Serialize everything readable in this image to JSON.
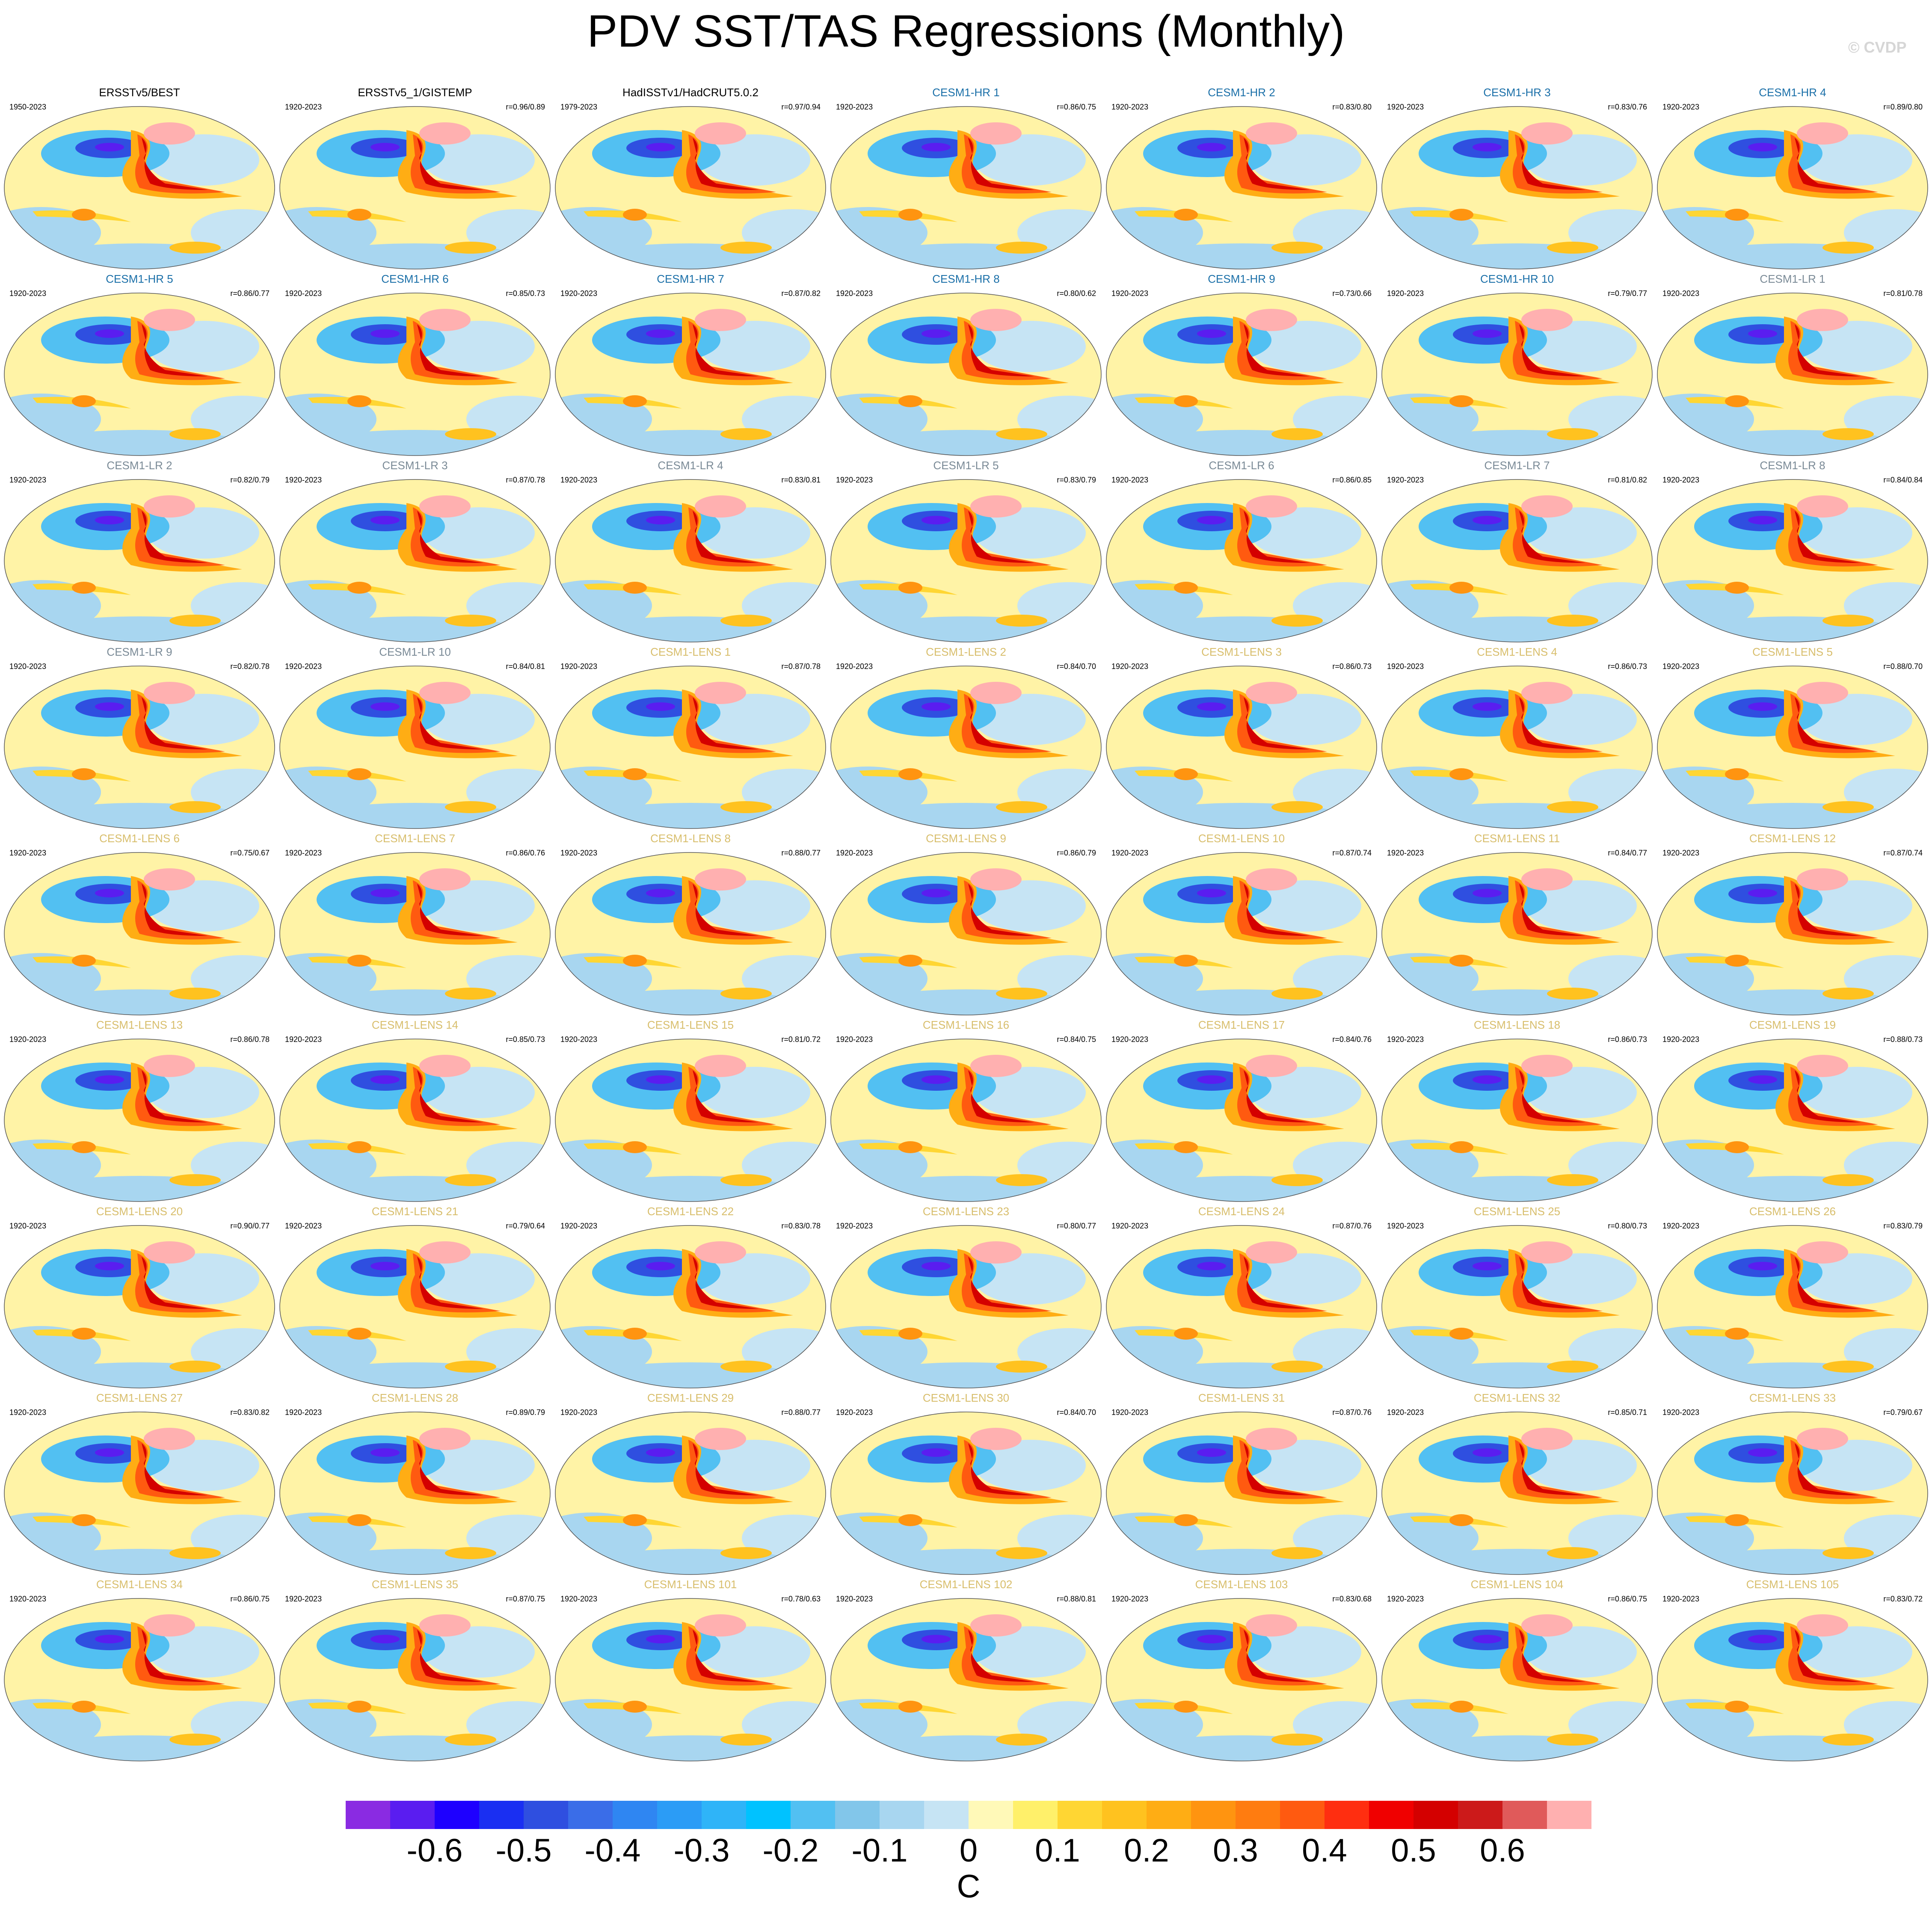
{
  "title": "PDV SST/TAS Regressions (Monthly)",
  "copyright": "© CVDP",
  "chart_data": {
    "type": "heatmap",
    "title": "PDV SST/TAS Regressions (Monthly)",
    "units": "C",
    "colorbar": {
      "ticks": [
        "-0.6",
        "-0.5",
        "-0.4",
        "-0.3",
        "-0.2",
        "-0.1",
        "0",
        "0.1",
        "0.2",
        "0.3",
        "0.4",
        "0.5",
        "0.6"
      ],
      "colors": [
        "#8a2be2",
        "#5a1df0",
        "#1e00ff",
        "#1a2ff2",
        "#2f4fe0",
        "#3a6de8",
        "#2f86f2",
        "#2b9cf6",
        "#2fb4f8",
        "#00c2ff",
        "#52c0f2",
        "#82c6ea",
        "#a8d6f0",
        "#c6e4f4",
        "#fff9b8",
        "#fff06a",
        "#ffd633",
        "#ffc21f",
        "#ffad14",
        "#ff9410",
        "#ff7c10",
        "#ff5a10",
        "#ff2e10",
        "#f00000",
        "#d40000",
        "#cc1a1a",
        "#e05a5a",
        "#ffb0b0"
      ]
    },
    "panels": [
      {
        "title": "ERSSTv5/BEST",
        "years": "1950-2023",
        "corr": "",
        "group": "obs"
      },
      {
        "title": "ERSSTv5_1/GISTEMP",
        "years": "1920-2023",
        "corr": "r=0.96/0.89",
        "group": "obs"
      },
      {
        "title": "HadISSTv1/HadCRUT5.0.2",
        "years": "1979-2023",
        "corr": "r=0.97/0.94",
        "group": "obs"
      },
      {
        "title": "CESM1-HR 1",
        "years": "1920-2023",
        "corr": "r=0.86/0.75",
        "group": "hr"
      },
      {
        "title": "CESM1-HR 2",
        "years": "1920-2023",
        "corr": "r=0.83/0.80",
        "group": "hr"
      },
      {
        "title": "CESM1-HR 3",
        "years": "1920-2023",
        "corr": "r=0.83/0.76",
        "group": "hr"
      },
      {
        "title": "CESM1-HR 4",
        "years": "1920-2023",
        "corr": "r=0.89/0.80",
        "group": "hr"
      },
      {
        "title": "CESM1-HR 5",
        "years": "1920-2023",
        "corr": "r=0.86/0.77",
        "group": "hr"
      },
      {
        "title": "CESM1-HR 6",
        "years": "1920-2023",
        "corr": "r=0.85/0.73",
        "group": "hr"
      },
      {
        "title": "CESM1-HR 7",
        "years": "1920-2023",
        "corr": "r=0.87/0.82",
        "group": "hr"
      },
      {
        "title": "CESM1-HR 8",
        "years": "1920-2023",
        "corr": "r=0.80/0.62",
        "group": "hr"
      },
      {
        "title": "CESM1-HR 9",
        "years": "1920-2023",
        "corr": "r=0.73/0.66",
        "group": "hr"
      },
      {
        "title": "CESM1-HR 10",
        "years": "1920-2023",
        "corr": "r=0.79/0.77",
        "group": "hr"
      },
      {
        "title": "CESM1-LR 1",
        "years": "1920-2023",
        "corr": "r=0.81/0.78",
        "group": "lr"
      },
      {
        "title": "CESM1-LR 2",
        "years": "1920-2023",
        "corr": "r=0.82/0.79",
        "group": "lr"
      },
      {
        "title": "CESM1-LR 3",
        "years": "1920-2023",
        "corr": "r=0.87/0.78",
        "group": "lr"
      },
      {
        "title": "CESM1-LR 4",
        "years": "1920-2023",
        "corr": "r=0.83/0.81",
        "group": "lr"
      },
      {
        "title": "CESM1-LR 5",
        "years": "1920-2023",
        "corr": "r=0.83/0.79",
        "group": "lr"
      },
      {
        "title": "CESM1-LR 6",
        "years": "1920-2023",
        "corr": "r=0.86/0.85",
        "group": "lr"
      },
      {
        "title": "CESM1-LR 7",
        "years": "1920-2023",
        "corr": "r=0.81/0.82",
        "group": "lr"
      },
      {
        "title": "CESM1-LR 8",
        "years": "1920-2023",
        "corr": "r=0.84/0.84",
        "group": "lr"
      },
      {
        "title": "CESM1-LR 9",
        "years": "1920-2023",
        "corr": "r=0.82/0.78",
        "group": "lr"
      },
      {
        "title": "CESM1-LR 10",
        "years": "1920-2023",
        "corr": "r=0.84/0.81",
        "group": "lr"
      },
      {
        "title": "CESM1-LENS 1",
        "years": "1920-2023",
        "corr": "r=0.87/0.78",
        "group": "lens"
      },
      {
        "title": "CESM1-LENS 2",
        "years": "1920-2023",
        "corr": "r=0.84/0.70",
        "group": "lens"
      },
      {
        "title": "CESM1-LENS 3",
        "years": "1920-2023",
        "corr": "r=0.86/0.73",
        "group": "lens"
      },
      {
        "title": "CESM1-LENS 4",
        "years": "1920-2023",
        "corr": "r=0.86/0.73",
        "group": "lens"
      },
      {
        "title": "CESM1-LENS 5",
        "years": "1920-2023",
        "corr": "r=0.88/0.70",
        "group": "lens"
      },
      {
        "title": "CESM1-LENS 6",
        "years": "1920-2023",
        "corr": "r=0.75/0.67",
        "group": "lens"
      },
      {
        "title": "CESM1-LENS 7",
        "years": "1920-2023",
        "corr": "r=0.86/0.76",
        "group": "lens"
      },
      {
        "title": "CESM1-LENS 8",
        "years": "1920-2023",
        "corr": "r=0.88/0.77",
        "group": "lens"
      },
      {
        "title": "CESM1-LENS 9",
        "years": "1920-2023",
        "corr": "r=0.86/0.79",
        "group": "lens"
      },
      {
        "title": "CESM1-LENS 10",
        "years": "1920-2023",
        "corr": "r=0.87/0.74",
        "group": "lens"
      },
      {
        "title": "CESM1-LENS 11",
        "years": "1920-2023",
        "corr": "r=0.84/0.77",
        "group": "lens"
      },
      {
        "title": "CESM1-LENS 12",
        "years": "1920-2023",
        "corr": "r=0.87/0.74",
        "group": "lens"
      },
      {
        "title": "CESM1-LENS 13",
        "years": "1920-2023",
        "corr": "r=0.86/0.78",
        "group": "lens"
      },
      {
        "title": "CESM1-LENS 14",
        "years": "1920-2023",
        "corr": "r=0.85/0.73",
        "group": "lens"
      },
      {
        "title": "CESM1-LENS 15",
        "years": "1920-2023",
        "corr": "r=0.81/0.72",
        "group": "lens"
      },
      {
        "title": "CESM1-LENS 16",
        "years": "1920-2023",
        "corr": "r=0.84/0.75",
        "group": "lens"
      },
      {
        "title": "CESM1-LENS 17",
        "years": "1920-2023",
        "corr": "r=0.84/0.76",
        "group": "lens"
      },
      {
        "title": "CESM1-LENS 18",
        "years": "1920-2023",
        "corr": "r=0.86/0.73",
        "group": "lens"
      },
      {
        "title": "CESM1-LENS 19",
        "years": "1920-2023",
        "corr": "r=0.88/0.73",
        "group": "lens"
      },
      {
        "title": "CESM1-LENS 20",
        "years": "1920-2023",
        "corr": "r=0.90/0.77",
        "group": "lens"
      },
      {
        "title": "CESM1-LENS 21",
        "years": "1920-2023",
        "corr": "r=0.79/0.64",
        "group": "lens"
      },
      {
        "title": "CESM1-LENS 22",
        "years": "1920-2023",
        "corr": "r=0.83/0.78",
        "group": "lens"
      },
      {
        "title": "CESM1-LENS 23",
        "years": "1920-2023",
        "corr": "r=0.80/0.77",
        "group": "lens"
      },
      {
        "title": "CESM1-LENS 24",
        "years": "1920-2023",
        "corr": "r=0.87/0.76",
        "group": "lens"
      },
      {
        "title": "CESM1-LENS 25",
        "years": "1920-2023",
        "corr": "r=0.80/0.73",
        "group": "lens"
      },
      {
        "title": "CESM1-LENS 26",
        "years": "1920-2023",
        "corr": "r=0.83/0.79",
        "group": "lens"
      },
      {
        "title": "CESM1-LENS 27",
        "years": "1920-2023",
        "corr": "r=0.83/0.82",
        "group": "lens"
      },
      {
        "title": "CESM1-LENS 28",
        "years": "1920-2023",
        "corr": "r=0.89/0.79",
        "group": "lens"
      },
      {
        "title": "CESM1-LENS 29",
        "years": "1920-2023",
        "corr": "r=0.88/0.77",
        "group": "lens"
      },
      {
        "title": "CESM1-LENS 30",
        "years": "1920-2023",
        "corr": "r=0.84/0.70",
        "group": "lens"
      },
      {
        "title": "CESM1-LENS 31",
        "years": "1920-2023",
        "corr": "r=0.87/0.76",
        "group": "lens"
      },
      {
        "title": "CESM1-LENS 32",
        "years": "1920-2023",
        "corr": "r=0.85/0.71",
        "group": "lens"
      },
      {
        "title": "CESM1-LENS 33",
        "years": "1920-2023",
        "corr": "r=0.79/0.67",
        "group": "lens"
      },
      {
        "title": "CESM1-LENS 34",
        "years": "1920-2023",
        "corr": "r=0.86/0.75",
        "group": "lens"
      },
      {
        "title": "CESM1-LENS 35",
        "years": "1920-2023",
        "corr": "r=0.87/0.75",
        "group": "lens"
      },
      {
        "title": "CESM1-LENS 101",
        "years": "1920-2023",
        "corr": "r=0.78/0.63",
        "group": "lens"
      },
      {
        "title": "CESM1-LENS 102",
        "years": "1920-2023",
        "corr": "r=0.88/0.81",
        "group": "lens"
      },
      {
        "title": "CESM1-LENS 103",
        "years": "1920-2023",
        "corr": "r=0.83/0.68",
        "group": "lens"
      },
      {
        "title": "CESM1-LENS 104",
        "years": "1920-2023",
        "corr": "r=0.86/0.75",
        "group": "lens"
      },
      {
        "title": "CESM1-LENS 105",
        "years": "1920-2023",
        "corr": "r=0.83/0.72",
        "group": "lens"
      }
    ],
    "group_colors": {
      "obs": "#000000",
      "hr": "#1a6fa8",
      "lr": "#7a8a96",
      "lens": "#d8be6c"
    }
  }
}
